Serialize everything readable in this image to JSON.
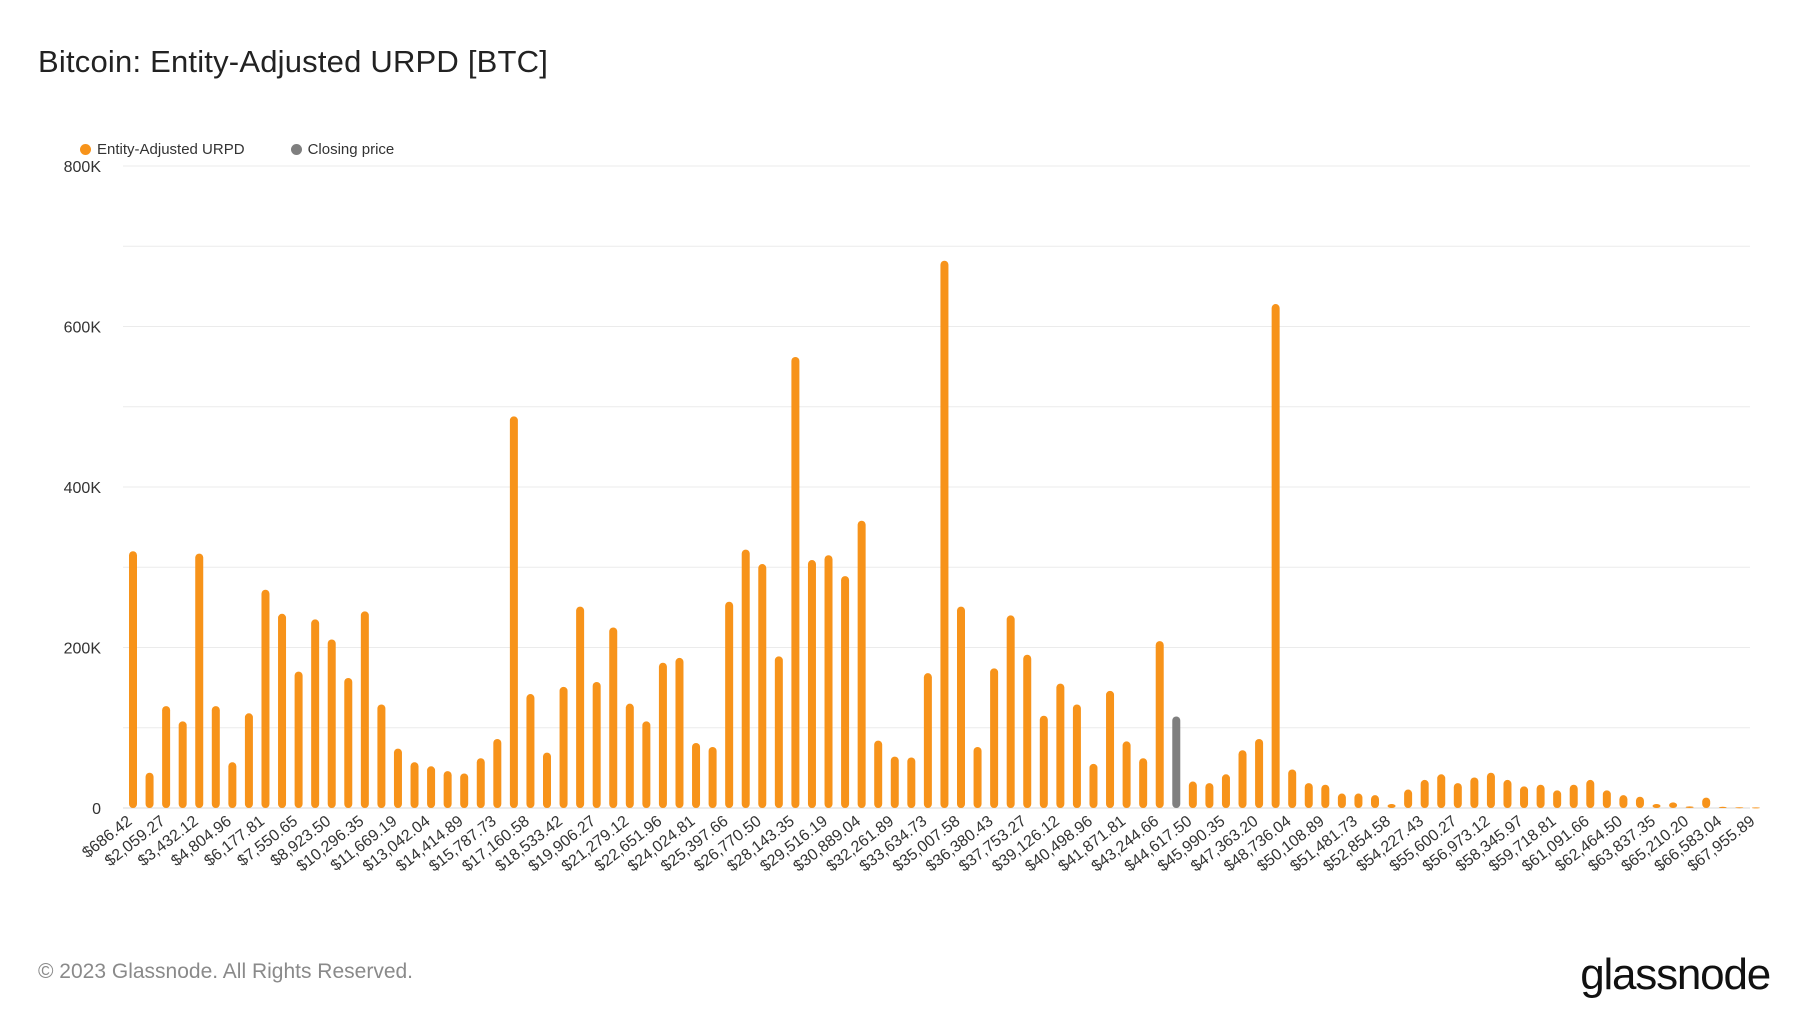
{
  "title": "Bitcoin: Entity-Adjusted URPD [BTC]",
  "copyright": "© 2023 Glassnode. All Rights Reserved.",
  "logo": "glassnode",
  "colors": {
    "urpd": "#F7931A",
    "closing": "#7f7f7f",
    "grid": "#ebebeb"
  },
  "chart_data": {
    "type": "bar",
    "title": "Bitcoin: Entity-Adjusted URPD [BTC]",
    "legend": [
      {
        "name": "Entity-Adjusted URPD",
        "color": "#F7931A"
      },
      {
        "name": "Closing price",
        "color": "#7f7f7f"
      }
    ],
    "legend_position": "top-left",
    "grid": true,
    "ylim": [
      0,
      800000
    ],
    "yticks": [
      0,
      200000,
      400000,
      600000,
      800000
    ],
    "ytick_labels": [
      "0",
      "200K",
      "400K",
      "600K",
      "800K"
    ],
    "xtick_labels": [
      "$686.42",
      "$2,059.27",
      "$3,432.12",
      "$4,804.96",
      "$6,177.81",
      "$7,550.65",
      "$8,923.50",
      "$10,296.35",
      "$11,669.19",
      "$13,042.04",
      "$14,414.89",
      "$15,787.73",
      "$17,160.58",
      "$18,533.42",
      "$19,906.27",
      "$21,279.12",
      "$22,651.96",
      "$24,024.81",
      "$25,397.66",
      "$26,770.50",
      "$28,143.35",
      "$29,516.19",
      "$30,889.04",
      "$32,261.89",
      "$33,634.73",
      "$35,007.58",
      "$36,380.43",
      "$37,753.27",
      "$39,126.12",
      "$40,498.96",
      "$41,871.81",
      "$43,244.66",
      "$44,617.50",
      "$45,990.35",
      "$47,363.20",
      "$48,736.04",
      "$50,108.89",
      "$51,481.73",
      "$52,854.58",
      "$54,227.43",
      "$55,600.27",
      "$56,973.12",
      "$58,345.97",
      "$59,718.81",
      "$61,091.66",
      "$62,464.50",
      "$63,837.35",
      "$65,210.20",
      "$66,583.04",
      "$67,955.89"
    ],
    "closing_price_index": 63,
    "values": [
      320000,
      44000,
      127000,
      108000,
      317000,
      127000,
      57000,
      118000,
      272000,
      242000,
      170000,
      235000,
      210000,
      162000,
      245000,
      129000,
      74000,
      57000,
      52000,
      46000,
      43000,
      62000,
      86000,
      488000,
      142000,
      69000,
      151000,
      251000,
      157000,
      225000,
      130000,
      108000,
      181000,
      187000,
      81000,
      76000,
      257000,
      322000,
      304000,
      189000,
      562000,
      309000,
      315000,
      289000,
      358000,
      84000,
      64000,
      63000,
      168000,
      682000,
      251000,
      76000,
      174000,
      240000,
      191000,
      115000,
      155000,
      129000,
      55000,
      146000,
      83000,
      62000,
      208000,
      114000,
      33000,
      31000,
      42000,
      72000,
      86000,
      628000,
      48000,
      31000,
      29000,
      18000,
      18000,
      16000,
      5000,
      23000,
      35000,
      42000,
      31000,
      38000,
      44000,
      35000,
      27000,
      29000,
      22000,
      29000,
      35000,
      22000,
      16000,
      14000,
      5000,
      7000,
      2000,
      13000,
      1500,
      1000,
      800
    ]
  }
}
